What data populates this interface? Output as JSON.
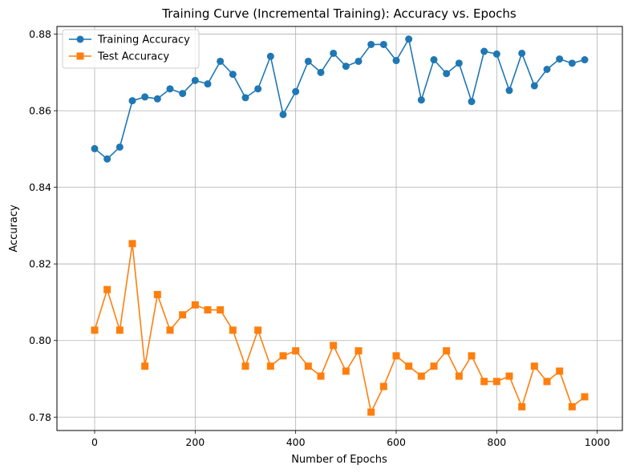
{
  "chart_data": {
    "type": "line",
    "title": "Training Curve (Incremental Training): Accuracy vs. Epochs",
    "xlabel": "Number of Epochs",
    "ylabel": "Accuracy",
    "xlim": [
      -75,
      1050
    ],
    "ylim": [
      0.7765,
      0.882
    ],
    "xticks": [
      0,
      200,
      400,
      600,
      800,
      1000
    ],
    "xtick_labels": [
      "0",
      "200",
      "400",
      "600",
      "800",
      "1000"
    ],
    "yticks": [
      0.78,
      0.8,
      0.82,
      0.84,
      0.86,
      0.88
    ],
    "ytick_labels": [
      "0.78",
      "0.80",
      "0.82",
      "0.84",
      "0.86",
      "0.88"
    ],
    "grid": true,
    "legend_position": "top-left",
    "x": [
      0,
      25,
      50,
      75,
      100,
      125,
      150,
      175,
      200,
      225,
      250,
      275,
      300,
      325,
      350,
      375,
      400,
      425,
      450,
      475,
      500,
      525,
      550,
      575,
      600,
      625,
      650,
      675,
      700,
      725,
      750,
      775,
      800,
      825,
      850,
      875,
      900,
      925,
      950,
      975
    ],
    "series": [
      {
        "name": "Training Accuracy",
        "color": "#1f77b4",
        "marker": "circle",
        "values": [
          0.8501,
          0.8474,
          0.8505,
          0.8626,
          0.8636,
          0.8631,
          0.8657,
          0.8645,
          0.8679,
          0.867,
          0.8729,
          0.8695,
          0.8634,
          0.8657,
          0.8742,
          0.859,
          0.865,
          0.8729,
          0.87,
          0.875,
          0.8716,
          0.8729,
          0.8773,
          0.8773,
          0.8731,
          0.8787,
          0.8628,
          0.8733,
          0.8697,
          0.8724,
          0.8624,
          0.8755,
          0.8748,
          0.8653,
          0.875,
          0.8665,
          0.8708,
          0.8735,
          0.8724,
          0.8733
        ]
      },
      {
        "name": "Test Accuracy",
        "color": "#ff7f0e",
        "marker": "square",
        "values": [
          0.8027,
          0.8133,
          0.8027,
          0.8253,
          0.7933,
          0.812,
          0.8027,
          0.8067,
          0.8093,
          0.808,
          0.808,
          0.8027,
          0.7933,
          0.8027,
          0.7933,
          0.796,
          0.7973,
          0.7933,
          0.7907,
          0.7987,
          0.792,
          0.7973,
          0.7813,
          0.788,
          0.796,
          0.7933,
          0.7907,
          0.7933,
          0.7973,
          0.7907,
          0.796,
          0.7893,
          0.7893,
          0.7907,
          0.7827,
          0.7933,
          0.7893,
          0.792,
          0.7827,
          0.7853
        ]
      }
    ]
  }
}
